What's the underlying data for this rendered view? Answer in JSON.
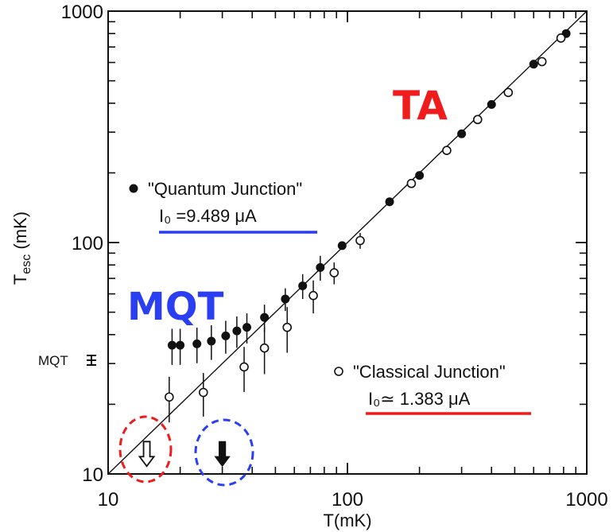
{
  "chart_data": {
    "type": "scatter",
    "xscale": "log",
    "yscale": "log",
    "xlim": [
      10,
      1000
    ],
    "ylim": [
      10,
      1000
    ],
    "xlabel": "T(mK)",
    "ylabel": "Tesc (mK)",
    "ylabel_main": "T",
    "ylabel_sub": "esc",
    "ylabel_unit": "(mK)",
    "x_ticks": [
      {
        "value": 10,
        "label": "10"
      },
      {
        "value": 100,
        "label": "100"
      },
      {
        "value": 1000,
        "label": "1000"
      }
    ],
    "y_ticks": [
      {
        "value": 10,
        "label": "10"
      },
      {
        "value": 100,
        "label": "100"
      },
      {
        "value": 1000,
        "label": "1000"
      }
    ],
    "reference_line": {
      "from": [
        10,
        10
      ],
      "to": [
        1000,
        1000
      ]
    },
    "series": [
      {
        "name": "\"Quantum Junction\"",
        "marker": "filled-circle",
        "param_label": "I₀ =9.489 μA",
        "points": [
          {
            "x": 18.5,
            "y": 36,
            "err": 4
          },
          {
            "x": 20,
            "y": 36,
            "err": 4
          },
          {
            "x": 23.5,
            "y": 36.5,
            "err": 4
          },
          {
            "x": 27,
            "y": 37.5,
            "err": 4
          },
          {
            "x": 31,
            "y": 39.5,
            "err": 4
          },
          {
            "x": 34.5,
            "y": 41.5,
            "err": 4
          },
          {
            "x": 38,
            "y": 43,
            "err": 4
          },
          {
            "x": 45,
            "y": 47.5,
            "err": 4
          },
          {
            "x": 55,
            "y": 57,
            "err": 4
          },
          {
            "x": 65,
            "y": 65,
            "err": 5
          },
          {
            "x": 77,
            "y": 78,
            "err": 6
          },
          {
            "x": 95,
            "y": 97,
            "err": 0
          },
          {
            "x": 150,
            "y": 150,
            "err": 0
          },
          {
            "x": 200,
            "y": 195,
            "err": 0
          },
          {
            "x": 300,
            "y": 295,
            "err": 0
          },
          {
            "x": 400,
            "y": 395,
            "err": 0
          },
          {
            "x": 600,
            "y": 590,
            "err": 0
          },
          {
            "x": 820,
            "y": 800,
            "err": 0
          }
        ]
      },
      {
        "name": "\"Classical Junction\"",
        "marker": "open-circle",
        "param_label": "I₀≃ 1.383 μA",
        "points": [
          {
            "x": 18,
            "y": 21.5,
            "err": 3
          },
          {
            "x": 25,
            "y": 22.5,
            "err": 3
          },
          {
            "x": 37,
            "y": 29,
            "err": 4
          },
          {
            "x": 45,
            "y": 35,
            "err": 5
          },
          {
            "x": 56,
            "y": 43,
            "err": 6
          },
          {
            "x": 72,
            "y": 59,
            "err": 6
          },
          {
            "x": 88,
            "y": 74,
            "err": 5
          },
          {
            "x": 113,
            "y": 102,
            "err": 5
          },
          {
            "x": 185,
            "y": 180,
            "err": 0
          },
          {
            "x": 260,
            "y": 250,
            "err": 0
          },
          {
            "x": 350,
            "y": 340,
            "err": 0
          },
          {
            "x": 470,
            "y": 445,
            "err": 0
          },
          {
            "x": 650,
            "y": 605,
            "err": 0
          },
          {
            "x": 780,
            "y": 765,
            "err": 0
          }
        ]
      }
    ],
    "markers": [
      {
        "type": "open-arrow",
        "x": 14.5,
        "y_top": 13.8,
        "y_bottom": 10.8
      },
      {
        "type": "filled-arrow",
        "x": 30,
        "y_top": 13.8,
        "y_bottom": 10.8
      }
    ],
    "mqt_level": {
      "label": "MQT",
      "y": 36
    }
  },
  "annotations": {
    "ta": "TA",
    "mqt": "MQT"
  },
  "colors": {
    "ta": "#ee1c1c",
    "mqt": "#2b3ff2",
    "quantum_underline": "#2b3ff2",
    "classical_underline": "#ee1c1c",
    "red_circle": "#ee1c1c",
    "blue_circle": "#2b3ff2"
  }
}
